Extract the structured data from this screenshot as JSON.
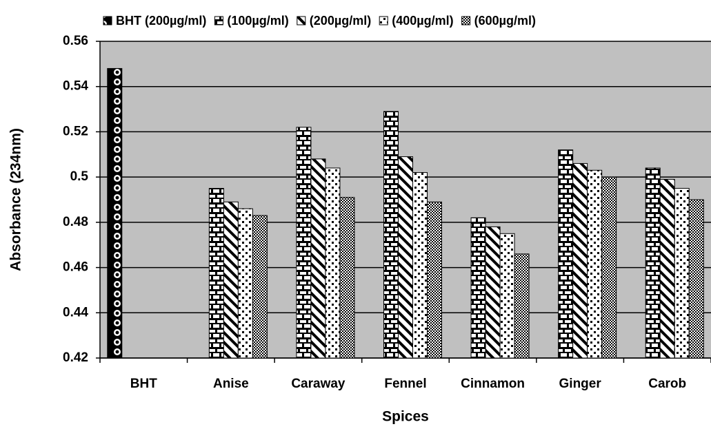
{
  "chart_data": {
    "type": "bar",
    "xlabel": "Spices",
    "ylabel": "Absorbance (234nm)",
    "categories": [
      "BHT",
      "Anise",
      "Caraway",
      "Fennel",
      "Cinnamon",
      "Ginger",
      "Carob"
    ],
    "series": [
      {
        "name": "BHT (200µg/ml)",
        "values": [
          0.548,
          null,
          null,
          null,
          null,
          null,
          null
        ]
      },
      {
        "name": "(100µg/ml)",
        "values": [
          null,
          0.495,
          0.522,
          0.529,
          0.482,
          0.512,
          0.504
        ]
      },
      {
        "name": "(200µg/ml)",
        "values": [
          null,
          0.489,
          0.508,
          0.509,
          0.478,
          0.506,
          0.499
        ]
      },
      {
        "name": "(400µg/ml)",
        "values": [
          null,
          0.486,
          0.504,
          0.502,
          0.475,
          0.503,
          0.495
        ]
      },
      {
        "name": "(600µg/ml)",
        "values": [
          null,
          0.483,
          0.491,
          0.489,
          0.466,
          0.5,
          0.49
        ]
      }
    ],
    "ylim": [
      0.42,
      0.56
    ],
    "yticks": [
      0.42,
      0.44,
      0.46,
      0.48,
      0.5,
      0.52,
      0.54,
      0.56
    ],
    "grid": true
  }
}
